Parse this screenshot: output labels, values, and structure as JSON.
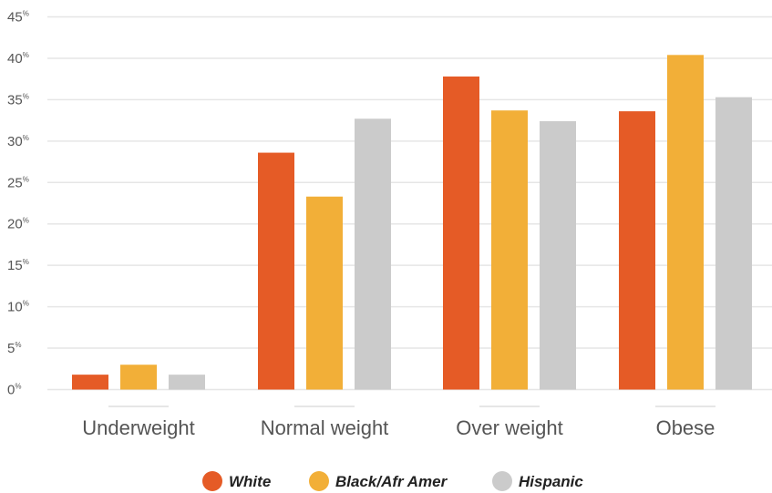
{
  "chart_data": {
    "type": "bar",
    "categories": [
      "Underweight",
      "Normal weight",
      "Over weight",
      "Obese"
    ],
    "series": [
      {
        "name": "White",
        "color": "#E55B26",
        "values": [
          1.8,
          28.6,
          37.8,
          33.6
        ]
      },
      {
        "name": "Black/Afr Amer",
        "color": "#F2AF38",
        "values": [
          3.0,
          23.3,
          33.7,
          40.4
        ]
      },
      {
        "name": "Hispanic",
        "color": "#CBCBCB",
        "values": [
          1.8,
          32.7,
          32.4,
          35.3
        ]
      }
    ],
    "ylim": [
      0,
      45
    ],
    "yticks": [
      {
        "value": 0,
        "label": "0",
        "suffix": "%"
      },
      {
        "value": 5,
        "label": "5",
        "suffix": "%"
      },
      {
        "value": 10,
        "label": "10",
        "suffix": "%"
      },
      {
        "value": 15,
        "label": "15",
        "suffix": "%"
      },
      {
        "value": 20,
        "label": "20",
        "suffix": "%"
      },
      {
        "value": 25,
        "label": "25",
        "suffix": "%"
      },
      {
        "value": 30,
        "label": "30",
        "suffix": "%"
      },
      {
        "value": 35,
        "label": "35",
        "suffix": "%"
      },
      {
        "value": 40,
        "label": "40",
        "suffix": "%"
      },
      {
        "value": 45,
        "label": "45",
        "suffix": "%"
      }
    ],
    "grid": true,
    "legend": "bottom-center",
    "grid_color": "#E6E6E6"
  }
}
